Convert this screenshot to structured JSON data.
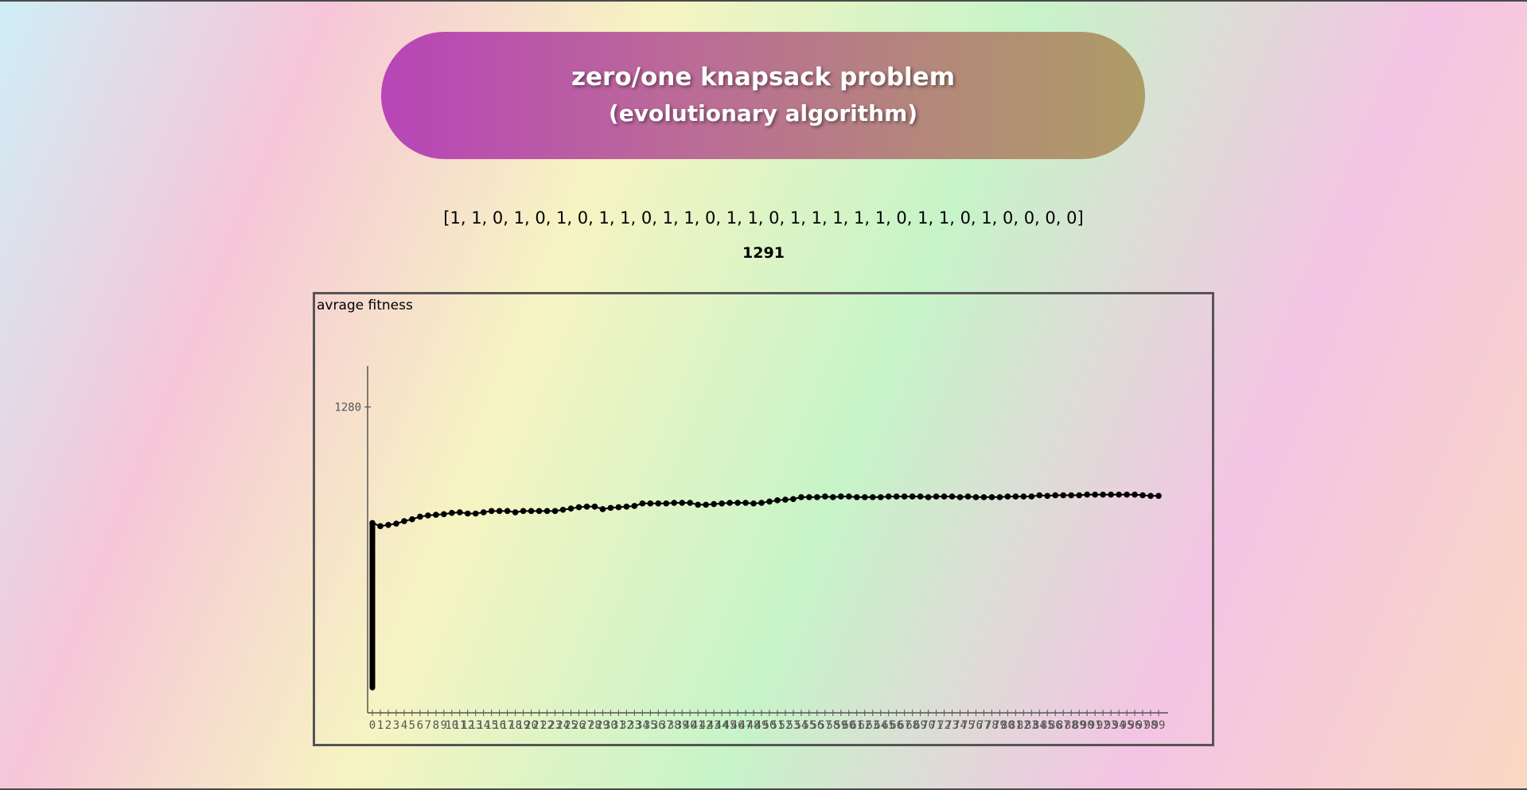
{
  "header": {
    "title": "zero/one knapsack problem",
    "subtitle": "(evolutionary algorithm)"
  },
  "result": {
    "chromosome": "[1, 1, 0, 1, 0, 1, 0, 1, 1, 0, 1, 1, 0, 1, 1, 0, 1, 1, 1, 1, 1, 0, 1, 1, 0, 1, 0, 0, 0, 0]",
    "best_fitness": "1291"
  },
  "chart_data": {
    "type": "scatter",
    "title": "avrage fitness",
    "xlabel": "",
    "ylabel": "",
    "y_ticks": [
      1280
    ],
    "ylim": [
      795,
      1345
    ],
    "x": [
      0,
      1,
      2,
      3,
      4,
      5,
      6,
      7,
      8,
      9,
      10,
      11,
      12,
      13,
      14,
      15,
      16,
      17,
      18,
      19,
      20,
      21,
      22,
      23,
      24,
      25,
      26,
      27,
      28,
      29,
      30,
      31,
      32,
      33,
      34,
      35,
      36,
      37,
      38,
      39,
      40,
      41,
      42,
      43,
      44,
      45,
      46,
      47,
      48,
      49,
      50,
      51,
      52,
      53,
      54,
      55,
      56,
      57,
      58,
      59,
      60,
      61,
      62,
      63,
      64,
      65,
      66,
      67,
      68,
      69,
      70,
      71,
      72,
      73,
      74,
      75,
      76,
      77,
      78,
      79,
      80,
      81,
      82,
      83,
      84,
      85,
      86,
      87,
      88,
      89,
      90,
      91,
      92,
      93,
      94,
      95,
      96,
      97,
      98,
      99
    ],
    "x_tick_labels": [
      "0",
      "1",
      "2",
      "3",
      "4",
      "5",
      "6",
      "7",
      "8",
      "9",
      "10",
      "11",
      "12",
      "13",
      "14",
      "15",
      "16",
      "17",
      "18",
      "19",
      "20",
      "21",
      "22",
      "23",
      "24",
      "25",
      "26",
      "27",
      "28",
      "29",
      "30",
      "31",
      "32",
      "33",
      "34",
      "35",
      "36",
      "37",
      "38",
      "39",
      "40",
      "41",
      "42",
      "43",
      "44",
      "45",
      "46",
      "47",
      "48",
      "49",
      "50",
      "51",
      "52",
      "53",
      "54",
      "55",
      "56",
      "57",
      "58",
      "59",
      "60",
      "61",
      "62",
      "63",
      "64",
      "65",
      "66",
      "67",
      "68",
      "69",
      "70",
      "71",
      "72",
      "73",
      "74",
      "75",
      "76",
      "77",
      "78",
      "79",
      "80",
      "81",
      "82",
      "83",
      "84",
      "85",
      "86",
      "87",
      "88",
      "89",
      "90",
      "91",
      "92",
      "93",
      "94",
      "95",
      "96",
      "97",
      "98",
      "99"
    ],
    "initial_spread": [
      835,
      1096
    ],
    "values": [
      1096,
      1091,
      1093,
      1095,
      1099,
      1102,
      1106,
      1108,
      1109,
      1110,
      1112,
      1113,
      1111,
      1111,
      1113,
      1115,
      1115,
      1115,
      1113,
      1115,
      1115,
      1115,
      1115,
      1115,
      1117,
      1119,
      1121,
      1122,
      1122,
      1118,
      1120,
      1121,
      1122,
      1123,
      1127,
      1127,
      1127,
      1127,
      1128,
      1128,
      1128,
      1125,
      1125,
      1126,
      1127,
      1128,
      1128,
      1128,
      1127,
      1128,
      1130,
      1132,
      1133,
      1134,
      1137,
      1137,
      1137,
      1138,
      1137,
      1138,
      1138,
      1137,
      1137,
      1137,
      1137,
      1138,
      1138,
      1138,
      1138,
      1138,
      1137,
      1138,
      1138,
      1138,
      1137,
      1138,
      1137,
      1137,
      1137,
      1137,
      1138,
      1138,
      1138,
      1138,
      1140,
      1139,
      1140,
      1140,
      1140,
      1140,
      1141,
      1141,
      1141,
      1141,
      1141,
      1141,
      1141,
      1140,
      1139,
      1139
    ],
    "grid": false,
    "legend": "none",
    "marker_color": "#000000",
    "axis_color": "#555555"
  },
  "colors": {
    "banner_start": "#b845b8",
    "banner_end": "#ae9c66",
    "frame": "#555555"
  }
}
